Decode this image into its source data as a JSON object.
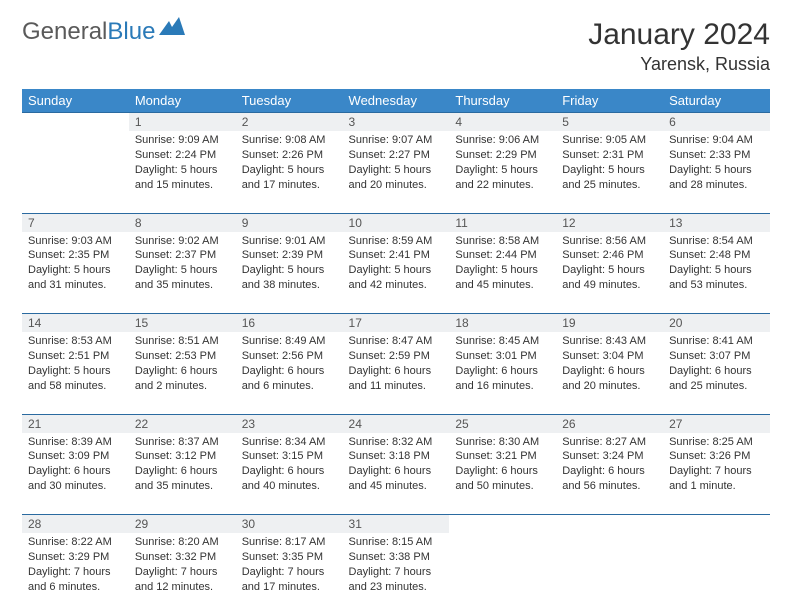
{
  "logo": {
    "part1": "General",
    "part2": "Blue"
  },
  "title": "January 2024",
  "location": "Yarensk, Russia",
  "colors": {
    "header_bg": "#3a87c8",
    "header_text": "#ffffff",
    "daynum_bg": "#eef0f2",
    "row_border": "#2a6aa0",
    "body_text": "#333333",
    "logo_gray": "#5a5a5a",
    "logo_blue": "#2a7ab8"
  },
  "weekdays": [
    "Sunday",
    "Monday",
    "Tuesday",
    "Wednesday",
    "Thursday",
    "Friday",
    "Saturday"
  ],
  "weeks": [
    {
      "nums": [
        "",
        "1",
        "2",
        "3",
        "4",
        "5",
        "6"
      ],
      "cells": [
        null,
        {
          "sunrise": "Sunrise: 9:09 AM",
          "sunset": "Sunset: 2:24 PM",
          "day1": "Daylight: 5 hours",
          "day2": "and 15 minutes."
        },
        {
          "sunrise": "Sunrise: 9:08 AM",
          "sunset": "Sunset: 2:26 PM",
          "day1": "Daylight: 5 hours",
          "day2": "and 17 minutes."
        },
        {
          "sunrise": "Sunrise: 9:07 AM",
          "sunset": "Sunset: 2:27 PM",
          "day1": "Daylight: 5 hours",
          "day2": "and 20 minutes."
        },
        {
          "sunrise": "Sunrise: 9:06 AM",
          "sunset": "Sunset: 2:29 PM",
          "day1": "Daylight: 5 hours",
          "day2": "and 22 minutes."
        },
        {
          "sunrise": "Sunrise: 9:05 AM",
          "sunset": "Sunset: 2:31 PM",
          "day1": "Daylight: 5 hours",
          "day2": "and 25 minutes."
        },
        {
          "sunrise": "Sunrise: 9:04 AM",
          "sunset": "Sunset: 2:33 PM",
          "day1": "Daylight: 5 hours",
          "day2": "and 28 minutes."
        }
      ]
    },
    {
      "nums": [
        "7",
        "8",
        "9",
        "10",
        "11",
        "12",
        "13"
      ],
      "cells": [
        {
          "sunrise": "Sunrise: 9:03 AM",
          "sunset": "Sunset: 2:35 PM",
          "day1": "Daylight: 5 hours",
          "day2": "and 31 minutes."
        },
        {
          "sunrise": "Sunrise: 9:02 AM",
          "sunset": "Sunset: 2:37 PM",
          "day1": "Daylight: 5 hours",
          "day2": "and 35 minutes."
        },
        {
          "sunrise": "Sunrise: 9:01 AM",
          "sunset": "Sunset: 2:39 PM",
          "day1": "Daylight: 5 hours",
          "day2": "and 38 minutes."
        },
        {
          "sunrise": "Sunrise: 8:59 AM",
          "sunset": "Sunset: 2:41 PM",
          "day1": "Daylight: 5 hours",
          "day2": "and 42 minutes."
        },
        {
          "sunrise": "Sunrise: 8:58 AM",
          "sunset": "Sunset: 2:44 PM",
          "day1": "Daylight: 5 hours",
          "day2": "and 45 minutes."
        },
        {
          "sunrise": "Sunrise: 8:56 AM",
          "sunset": "Sunset: 2:46 PM",
          "day1": "Daylight: 5 hours",
          "day2": "and 49 minutes."
        },
        {
          "sunrise": "Sunrise: 8:54 AM",
          "sunset": "Sunset: 2:48 PM",
          "day1": "Daylight: 5 hours",
          "day2": "and 53 minutes."
        }
      ]
    },
    {
      "nums": [
        "14",
        "15",
        "16",
        "17",
        "18",
        "19",
        "20"
      ],
      "cells": [
        {
          "sunrise": "Sunrise: 8:53 AM",
          "sunset": "Sunset: 2:51 PM",
          "day1": "Daylight: 5 hours",
          "day2": "and 58 minutes."
        },
        {
          "sunrise": "Sunrise: 8:51 AM",
          "sunset": "Sunset: 2:53 PM",
          "day1": "Daylight: 6 hours",
          "day2": "and 2 minutes."
        },
        {
          "sunrise": "Sunrise: 8:49 AM",
          "sunset": "Sunset: 2:56 PM",
          "day1": "Daylight: 6 hours",
          "day2": "and 6 minutes."
        },
        {
          "sunrise": "Sunrise: 8:47 AM",
          "sunset": "Sunset: 2:59 PM",
          "day1": "Daylight: 6 hours",
          "day2": "and 11 minutes."
        },
        {
          "sunrise": "Sunrise: 8:45 AM",
          "sunset": "Sunset: 3:01 PM",
          "day1": "Daylight: 6 hours",
          "day2": "and 16 minutes."
        },
        {
          "sunrise": "Sunrise: 8:43 AM",
          "sunset": "Sunset: 3:04 PM",
          "day1": "Daylight: 6 hours",
          "day2": "and 20 minutes."
        },
        {
          "sunrise": "Sunrise: 8:41 AM",
          "sunset": "Sunset: 3:07 PM",
          "day1": "Daylight: 6 hours",
          "day2": "and 25 minutes."
        }
      ]
    },
    {
      "nums": [
        "21",
        "22",
        "23",
        "24",
        "25",
        "26",
        "27"
      ],
      "cells": [
        {
          "sunrise": "Sunrise: 8:39 AM",
          "sunset": "Sunset: 3:09 PM",
          "day1": "Daylight: 6 hours",
          "day2": "and 30 minutes."
        },
        {
          "sunrise": "Sunrise: 8:37 AM",
          "sunset": "Sunset: 3:12 PM",
          "day1": "Daylight: 6 hours",
          "day2": "and 35 minutes."
        },
        {
          "sunrise": "Sunrise: 8:34 AM",
          "sunset": "Sunset: 3:15 PM",
          "day1": "Daylight: 6 hours",
          "day2": "and 40 minutes."
        },
        {
          "sunrise": "Sunrise: 8:32 AM",
          "sunset": "Sunset: 3:18 PM",
          "day1": "Daylight: 6 hours",
          "day2": "and 45 minutes."
        },
        {
          "sunrise": "Sunrise: 8:30 AM",
          "sunset": "Sunset: 3:21 PM",
          "day1": "Daylight: 6 hours",
          "day2": "and 50 minutes."
        },
        {
          "sunrise": "Sunrise: 8:27 AM",
          "sunset": "Sunset: 3:24 PM",
          "day1": "Daylight: 6 hours",
          "day2": "and 56 minutes."
        },
        {
          "sunrise": "Sunrise: 8:25 AM",
          "sunset": "Sunset: 3:26 PM",
          "day1": "Daylight: 7 hours",
          "day2": "and 1 minute."
        }
      ]
    },
    {
      "nums": [
        "28",
        "29",
        "30",
        "31",
        "",
        "",
        ""
      ],
      "cells": [
        {
          "sunrise": "Sunrise: 8:22 AM",
          "sunset": "Sunset: 3:29 PM",
          "day1": "Daylight: 7 hours",
          "day2": "and 6 minutes."
        },
        {
          "sunrise": "Sunrise: 8:20 AM",
          "sunset": "Sunset: 3:32 PM",
          "day1": "Daylight: 7 hours",
          "day2": "and 12 minutes."
        },
        {
          "sunrise": "Sunrise: 8:17 AM",
          "sunset": "Sunset: 3:35 PM",
          "day1": "Daylight: 7 hours",
          "day2": "and 17 minutes."
        },
        {
          "sunrise": "Sunrise: 8:15 AM",
          "sunset": "Sunset: 3:38 PM",
          "day1": "Daylight: 7 hours",
          "day2": "and 23 minutes."
        },
        null,
        null,
        null
      ]
    }
  ]
}
